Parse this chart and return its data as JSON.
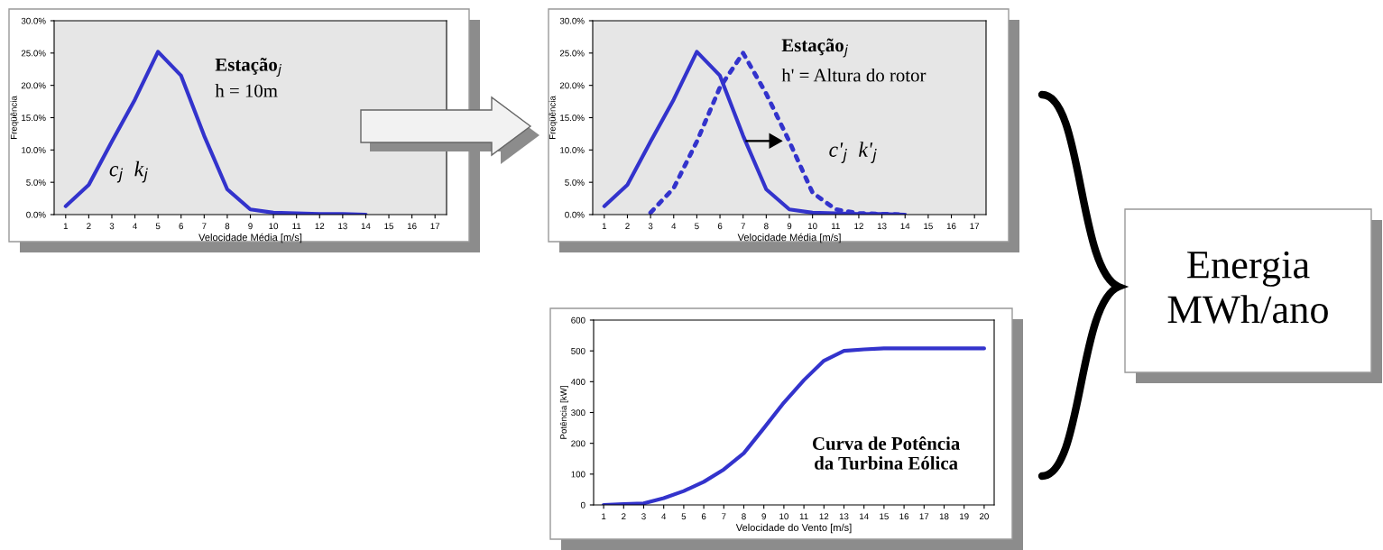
{
  "chart_data": [
    {
      "type": "line",
      "xlabel": "Velocidade Média [m/s]",
      "ylabel": "Freqüência",
      "categories": [
        "1",
        "2",
        "3",
        "4",
        "5",
        "6",
        "7",
        "8",
        "9",
        "10",
        "11",
        "12",
        "13",
        "14",
        "15",
        "16",
        "17"
      ],
      "series": [
        {
          "color": "#3333cc",
          "line_style": "solid",
          "values": [
            1.3,
            4.6,
            11.3,
            17.8,
            25.2,
            21.5,
            12.2,
            3.9,
            0.8,
            0.3,
            0.2,
            0.1,
            0.1,
            0,
            null,
            null,
            null
          ]
        }
      ],
      "ylim": [
        0,
        30
      ],
      "yticks": [
        {
          "value": 0,
          "label": "0.0%"
        },
        {
          "value": 5,
          "label": "5.0%"
        },
        {
          "value": 10,
          "label": "10.0%"
        },
        {
          "value": 15,
          "label": "15.0%"
        },
        {
          "value": 20,
          "label": "20.0%"
        },
        {
          "value": 25,
          "label": "25.0%"
        },
        {
          "value": 30,
          "label": "30.0%"
        }
      ],
      "annotations": [
        "Estação$_{j}$",
        "h = 10m",
        "c$_{j}$  k$_{j}$"
      ]
    },
    {
      "type": "line",
      "xlabel": "Velocidade Média [m/s]",
      "ylabel": "Freqüência",
      "categories": [
        "1",
        "2",
        "3",
        "4",
        "5",
        "6",
        "7",
        "8",
        "9",
        "10",
        "11",
        "12",
        "13",
        "14",
        "15",
        "16",
        "17"
      ],
      "series": [
        {
          "color": "#3333cc",
          "line_style": "solid",
          "values": [
            1.3,
            4.6,
            11.3,
            17.8,
            25.2,
            21.5,
            12.2,
            3.9,
            0.8,
            0.3,
            0.2,
            0.1,
            0.1,
            0,
            null,
            null,
            null
          ]
        },
        {
          "color": "#3333cc",
          "line_style": "dotted",
          "values": [
            null,
            null,
            0.3,
            4.1,
            11.3,
            19.7,
            25,
            18.7,
            11.3,
            3.4,
            0.8,
            0.2,
            0.1,
            0,
            null,
            null,
            null
          ]
        }
      ],
      "ylim": [
        0,
        30
      ],
      "yticks": [
        {
          "value": 0,
          "label": "0.0%"
        },
        {
          "value": 5,
          "label": "5.0%"
        },
        {
          "value": 10,
          "label": "10.0%"
        },
        {
          "value": 15,
          "label": "15.0%"
        },
        {
          "value": 20,
          "label": "20.0%"
        },
        {
          "value": 25,
          "label": "25.0%"
        },
        {
          "value": 30,
          "label": "30.0%"
        }
      ],
      "annotations": [
        "Estação$_{j}$",
        "h' = Altura do rotor",
        "c'$_{j}$  k'$_{j}$"
      ]
    },
    {
      "type": "line",
      "xlabel": "Velocidade do Vento [m/s]",
      "ylabel": "Potência [kW]",
      "categories": [
        "1",
        "2",
        "3",
        "4",
        "5",
        "6",
        "7",
        "8",
        "9",
        "10",
        "11",
        "12",
        "13",
        "14",
        "15",
        "16",
        "17",
        "18",
        "19",
        "20"
      ],
      "series": [
        {
          "color": "#3333cc",
          "line_style": "solid",
          "values": [
            0,
            3,
            5,
            22,
            45,
            75,
            115,
            168,
            249,
            332,
            405,
            468,
            500,
            505,
            508,
            508,
            508,
            508,
            508,
            508
          ]
        }
      ],
      "ylim": [
        0,
        600
      ],
      "yticks": [
        0,
        100,
        200,
        300,
        400,
        500,
        600
      ],
      "annotations": [
        "Curva de Potência\nda Turbina Eólica"
      ]
    },
    {
      "type": "other",
      "annotations": [
        "Energia\nMWh/ano"
      ]
    }
  ]
}
